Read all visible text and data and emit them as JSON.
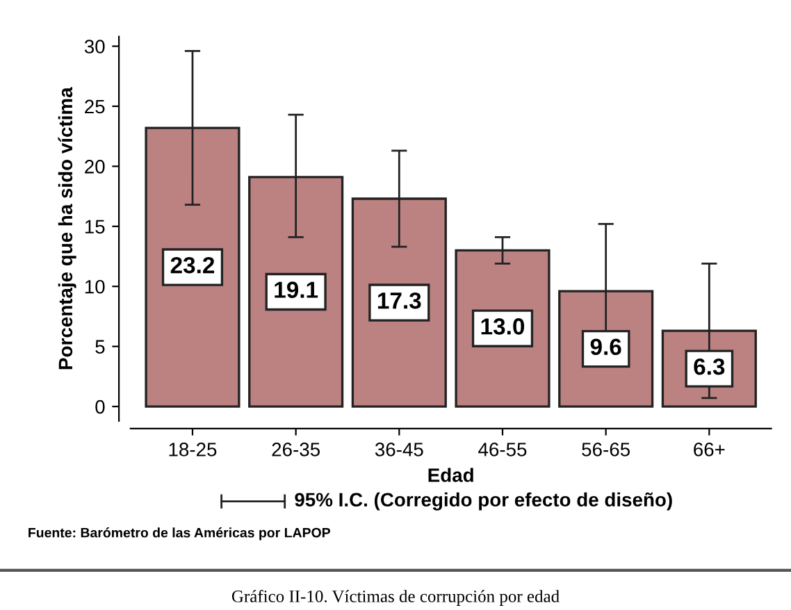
{
  "chart_data": {
    "type": "bar",
    "title": "Gráfico II-10. Víctimas de corrupción por edad",
    "xlabel": "Edad",
    "ylabel": "Porcentaje que ha sido víctima",
    "categories": [
      "18-25",
      "26-35",
      "36-45",
      "46-55",
      "56-65",
      "66+"
    ],
    "values": [
      23.2,
      19.1,
      17.3,
      13.0,
      9.6,
      6.3
    ],
    "errors": [
      [
        16.8,
        29.6
      ],
      [
        14.1,
        24.3
      ],
      [
        13.3,
        21.3
      ],
      [
        11.9,
        14.1
      ],
      [
        4.0,
        15.2
      ],
      [
        0.7,
        11.9
      ]
    ],
    "color": "#bc8282",
    "value_labels": [
      "23.2",
      "19.1",
      "17.3",
      "13.0",
      "9.6",
      "6.3"
    ],
    "ylim": [
      -1.2,
      30.8
    ],
    "yticks": [
      0,
      5,
      10,
      15,
      20,
      25,
      30
    ],
    "grid": false,
    "legend": false,
    "annotations": [
      "95% I.C. (Corregido por efecto de diseño)",
      "Fuente: Barómetro de las Américas por LAPOP"
    ]
  }
}
